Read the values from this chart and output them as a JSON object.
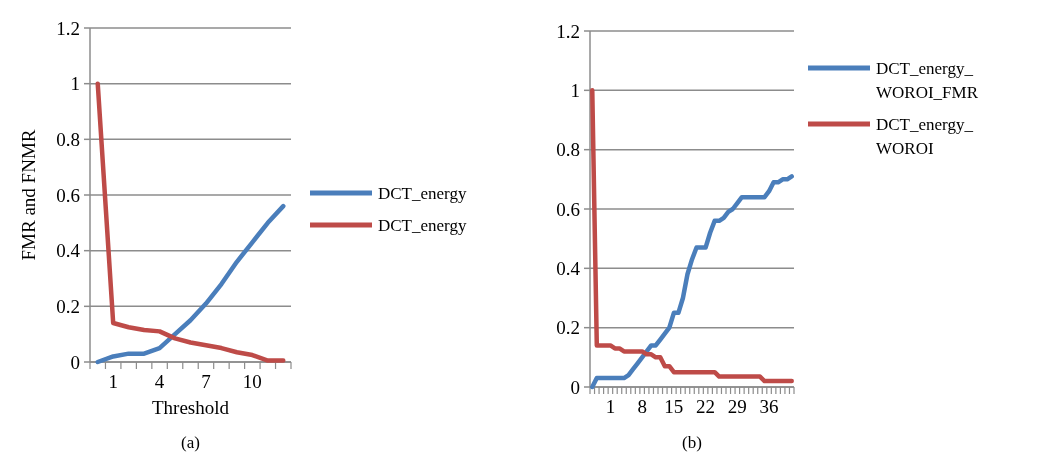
{
  "chart_data": [
    {
      "type": "line",
      "ylabel": "FMR and FNMR",
      "xlabel": "Threshold",
      "annotations": [
        "(a)"
      ],
      "categories": [
        null,
        "1",
        null,
        null,
        "4",
        null,
        null,
        "7",
        null,
        null,
        "10",
        null,
        null
      ],
      "series": [
        {
          "name": "DCT_energy",
          "color": "#4a7ebb",
          "values": [
            0,
            0.02,
            0.03,
            0.03,
            0.05,
            0.1,
            0.15,
            0.21,
            0.28,
            0.36,
            0.43,
            0.5,
            0.56
          ]
        },
        {
          "name": "DCT_energy",
          "color": "#be4b48",
          "values": [
            1,
            0.14,
            0.125,
            0.115,
            0.11,
            0.085,
            0.07,
            0.06,
            0.05,
            0.035,
            0.025,
            0.005,
            0.005
          ]
        }
      ],
      "ylim": [
        0,
        1.2
      ],
      "yticks": [
        0,
        0.2,
        0.4,
        0.6,
        0.8,
        1,
        1.2
      ],
      "grid": "y",
      "legend": "right",
      "marker": "none",
      "line_style": "solid"
    },
    {
      "type": "line",
      "annotations": [
        "(b)"
      ],
      "categories": [
        null,
        null,
        null,
        null,
        "1",
        null,
        null,
        null,
        null,
        null,
        null,
        "8",
        null,
        null,
        null,
        null,
        null,
        null,
        "15",
        null,
        null,
        null,
        null,
        null,
        null,
        "22",
        null,
        null,
        null,
        null,
        null,
        null,
        "29",
        null,
        null,
        null,
        null,
        null,
        null,
        "36",
        null,
        null,
        null,
        null,
        null
      ],
      "series": [
        {
          "name": "DCT_energy_WOROI_FMR",
          "color": "#4a7ebb",
          "values": [
            0,
            0.03,
            0.03,
            0.03,
            0.03,
            0.03,
            0.03,
            0.03,
            0.04,
            0.06,
            0.08,
            0.1,
            0.12,
            0.14,
            0.14,
            0.16,
            0.18,
            0.2,
            0.25,
            0.25,
            0.3,
            0.38,
            0.43,
            0.47,
            0.47,
            0.47,
            0.52,
            0.56,
            0.56,
            0.57,
            0.59,
            0.6,
            0.62,
            0.64,
            0.64,
            0.64,
            0.64,
            0.64,
            0.64,
            0.66,
            0.69,
            0.69,
            0.7,
            0.7,
            0.71
          ]
        },
        {
          "name": "DCT_energy_WOROI",
          "color": "#be4b48",
          "values": [
            1,
            0.14,
            0.14,
            0.14,
            0.14,
            0.13,
            0.13,
            0.12,
            0.12,
            0.12,
            0.12,
            0.12,
            0.11,
            0.11,
            0.1,
            0.1,
            0.07,
            0.07,
            0.05,
            0.05,
            0.05,
            0.05,
            0.05,
            0.05,
            0.05,
            0.05,
            0.05,
            0.05,
            0.035,
            0.035,
            0.035,
            0.035,
            0.035,
            0.035,
            0.035,
            0.035,
            0.035,
            0.035,
            0.02,
            0.02,
            0.02,
            0.02,
            0.02,
            0.02,
            0.02
          ]
        }
      ],
      "ylim": [
        0,
        1.2
      ],
      "yticks": [
        0,
        0.2,
        0.4,
        0.6,
        0.8,
        1,
        1.2
      ],
      "grid": "y",
      "legend": "right",
      "marker": "none",
      "line_style": "solid"
    }
  ]
}
